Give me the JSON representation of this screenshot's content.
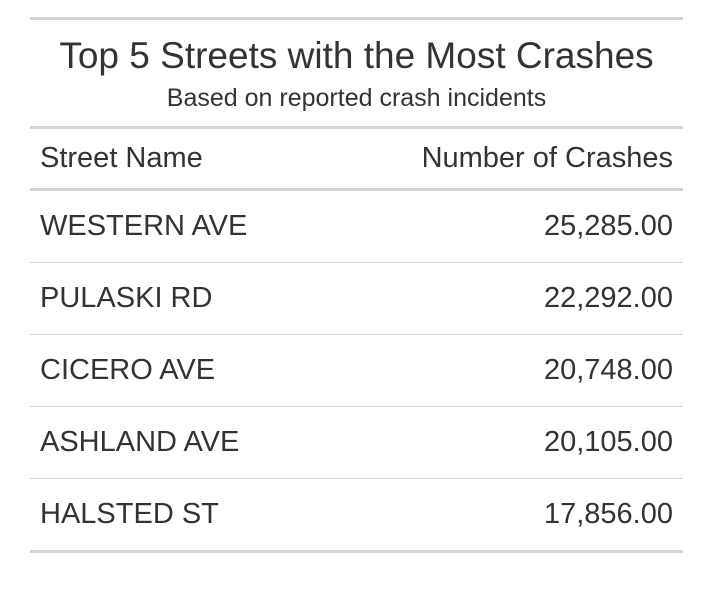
{
  "chart_data": {
    "type": "table",
    "title": "Top 5 Streets with the Most Crashes",
    "subtitle": "Based on reported crash incidents",
    "columns": [
      "Street Name",
      "Number of Crashes"
    ],
    "rows": [
      {
        "street": "WESTERN AVE",
        "crashes": 25285,
        "crashes_label": "25,285.00"
      },
      {
        "street": "PULASKI RD",
        "crashes": 22292,
        "crashes_label": "22,292.00"
      },
      {
        "street": "CICERO AVE",
        "crashes": 20748,
        "crashes_label": "20,748.00"
      },
      {
        "street": "ASHLAND AVE",
        "crashes": 20105,
        "crashes_label": "20,105.00"
      },
      {
        "street": "HALSTED ST",
        "crashes": 17856,
        "crashes_label": "17,856.00"
      }
    ]
  },
  "colors": {
    "text": "#333333",
    "rule": "#d3d3d3",
    "background": "#ffffff"
  }
}
